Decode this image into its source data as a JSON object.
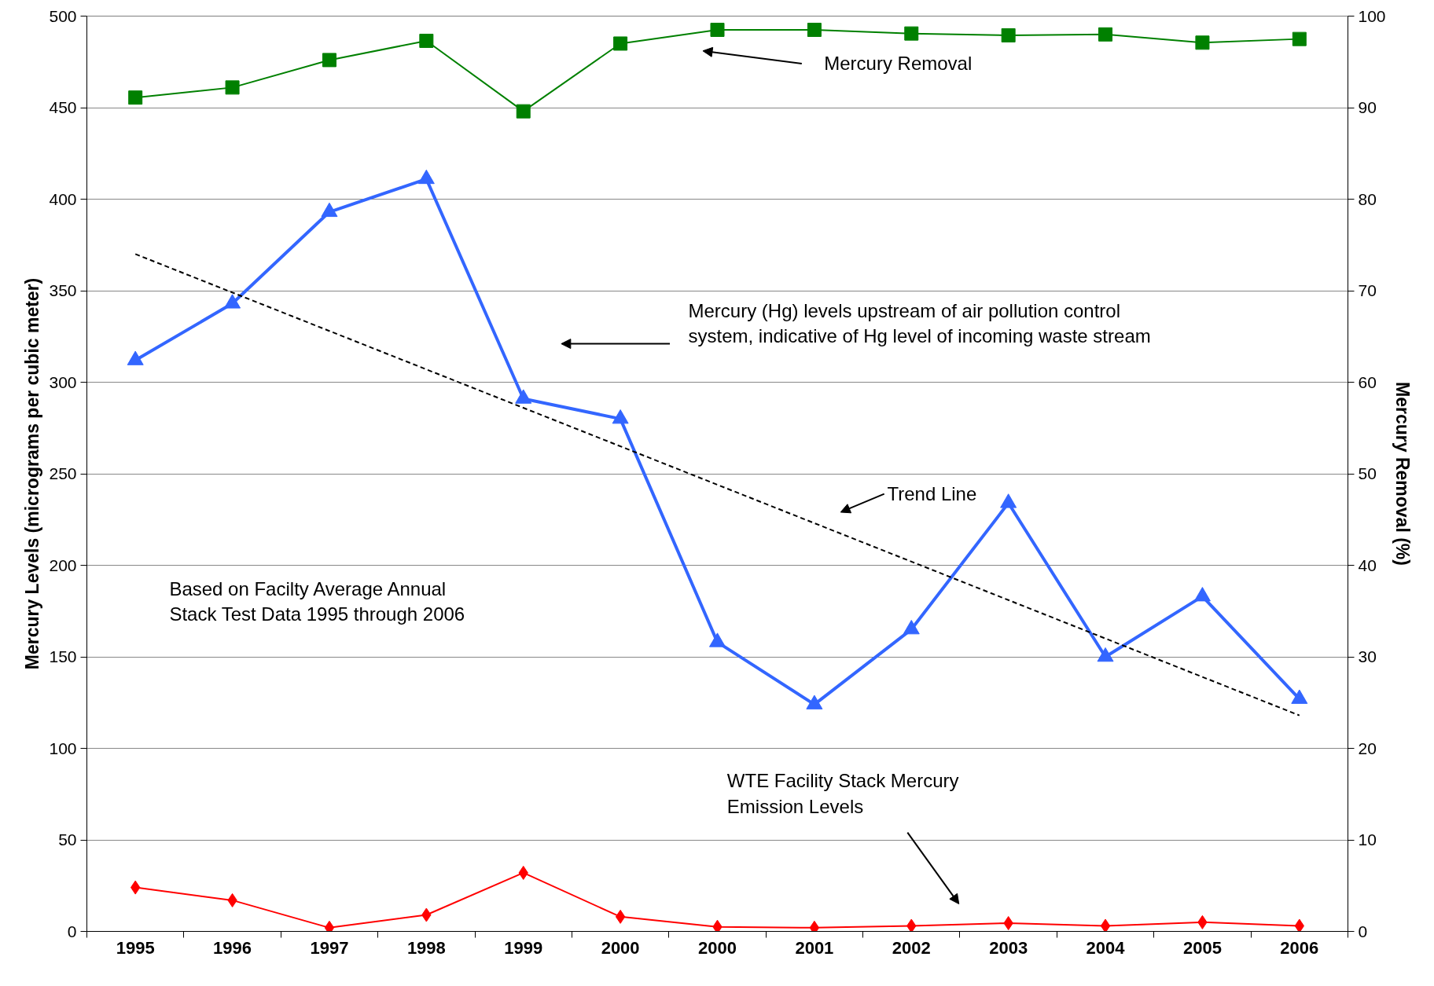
{
  "chart_data": {
    "type": "line",
    "ylabel": "Mercury Levels (micrograms per cubic meter)",
    "y2label": "Mercury Removal (%)",
    "categories": [
      "1995",
      "1996",
      "1997",
      "1998",
      "1999",
      "2000",
      "2000",
      "2001",
      "2002",
      "2003",
      "2004",
      "2005",
      "2006"
    ],
    "series": [
      {
        "color": "#008000",
        "axis": "y2",
        "marker": "square",
        "values": [
          91.1,
          92.2,
          95.2,
          97.3,
          89.6,
          97.0,
          98.5,
          98.5,
          98.1,
          97.9,
          98.0,
          97.1,
          97.5
        ]
      },
      {
        "color": "#3366ff",
        "marker": "triangle",
        "values": [
          312,
          343,
          393,
          411,
          291,
          280,
          158,
          124,
          165,
          234,
          150,
          183,
          127
        ]
      },
      {
        "color": "#ff0000",
        "marker": "diamond",
        "values": [
          24,
          17,
          2,
          9,
          32,
          8,
          2.5,
          2,
          3,
          4.5,
          3,
          5,
          3
        ]
      },
      {
        "color": "#000000",
        "marker": "none",
        "line_style": "dashed",
        "values": [
          370,
          null,
          null,
          null,
          null,
          null,
          null,
          null,
          null,
          null,
          null,
          null,
          118
        ]
      }
    ],
    "annotations": [
      "Mercury Removal",
      "Mercury (Hg) levels upstream of air pollution control\nsystem, indicative of Hg level of incoming waste stream",
      "Trend Line",
      "Based on Facilty Average Annual\nStack Test Data 1995 through 2006",
      "WTE Facility Stack Mercury\nEmission Levels"
    ],
    "ylim": [
      0,
      500
    ],
    "yticks": [
      0,
      50,
      100,
      150,
      200,
      250,
      300,
      350,
      400,
      450,
      500
    ],
    "y2lim": [
      0,
      100
    ],
    "y2ticks": [
      0,
      10,
      20,
      30,
      40,
      50,
      60,
      70,
      80,
      90,
      100
    ],
    "grid": "y"
  }
}
